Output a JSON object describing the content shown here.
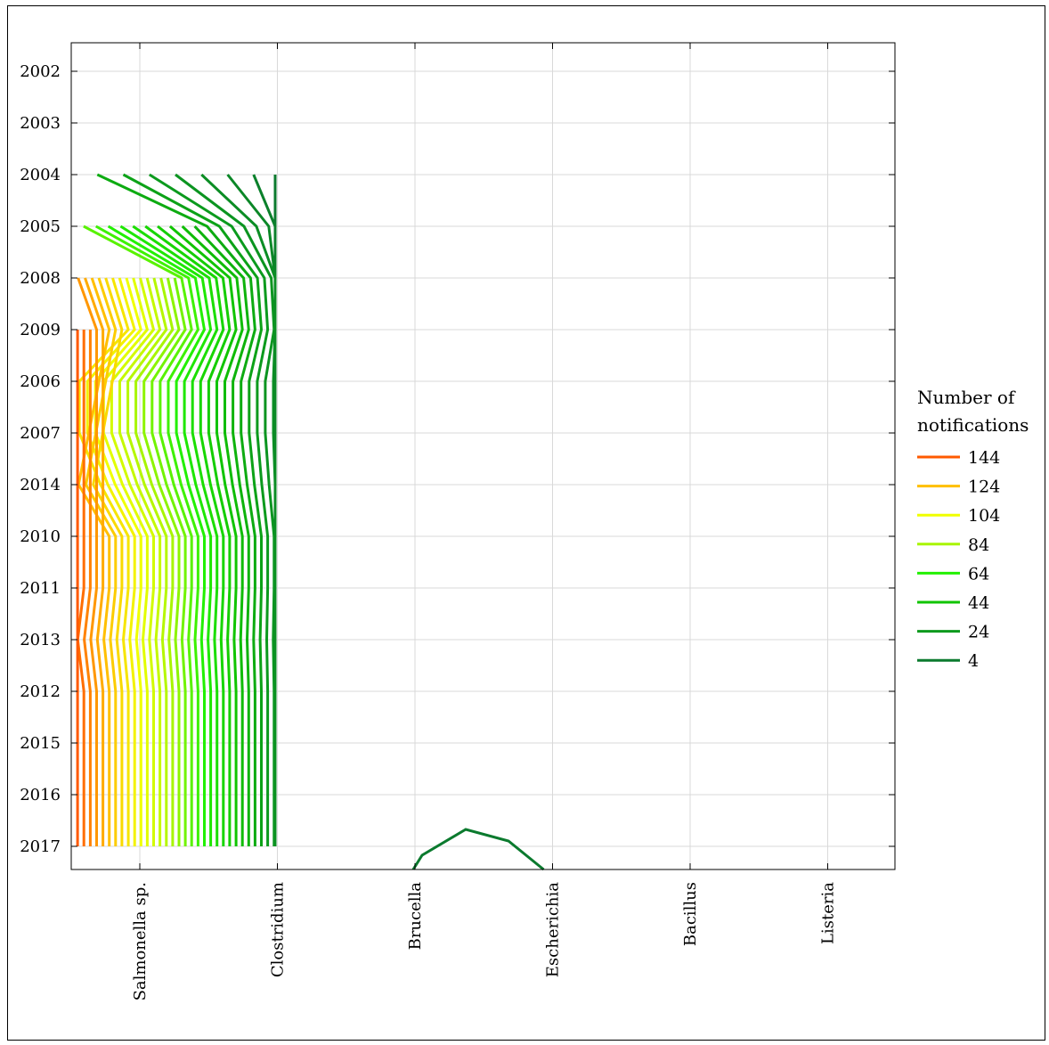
{
  "chart_data": {
    "type": "contour",
    "title": "",
    "xlabel": "",
    "ylabel": "",
    "x_categories": [
      "Salmonella sp.",
      "Clostridium",
      "Brucella",
      "Escherichia",
      "Bacillus",
      "Listeria"
    ],
    "y_categories": [
      "2002",
      "2003",
      "2004",
      "2005",
      "2008",
      "2009",
      "2006",
      "2007",
      "2014",
      "2010",
      "2011",
      "2013",
      "2012",
      "2015",
      "2016",
      "2017"
    ],
    "legend": {
      "title_lines": [
        "Number of",
        "notifications"
      ],
      "placement": "right",
      "entries": [
        {
          "label": "144",
          "color": "#ff5a00"
        },
        {
          "label": "124",
          "color": "#ffbf00"
        },
        {
          "label": "104",
          "color": "#f0ff00"
        },
        {
          "label": "84",
          "color": "#a8f500"
        },
        {
          "label": "64",
          "color": "#22f000"
        },
        {
          "label": "44",
          "color": "#10c400"
        },
        {
          "label": "24",
          "color": "#0b9a1d"
        },
        {
          "label": "4",
          "color": "#0b7a2e"
        }
      ]
    },
    "contour_levels": {
      "start": 4,
      "step": 4,
      "count": 37,
      "min": 4,
      "max": 148
    },
    "grid": true,
    "estimated_values": {
      "Salmonella sp.": [
        3,
        4,
        36,
        76,
        136,
        148,
        116,
        116,
        128,
        148,
        148,
        144,
        148,
        148,
        148,
        148
      ],
      "Clostridium": [
        0,
        0,
        0,
        0,
        0,
        0,
        0,
        0,
        0,
        0,
        0,
        0,
        0,
        0,
        0,
        0
      ],
      "Brucella": [
        0,
        0,
        0,
        0,
        0,
        0,
        0,
        0,
        0,
        0,
        0,
        0,
        0,
        0,
        0,
        0
      ],
      "Escherichia": [
        0,
        0,
        0,
        0,
        0,
        0,
        0,
        0,
        0,
        0,
        0,
        0,
        0,
        0,
        0,
        0
      ],
      "Bacillus": [
        0,
        0,
        0,
        0,
        0,
        0,
        0,
        0,
        0,
        0,
        0,
        0,
        0,
        0,
        0,
        0
      ],
      "Listeria": [
        0,
        0,
        0,
        0,
        0,
        0,
        0,
        0,
        0,
        0,
        0,
        0,
        0,
        0,
        0,
        0
      ]
    },
    "minor_contour": {
      "location": "between Brucella and Escherichia",
      "years": "2017",
      "level": 4
    }
  }
}
